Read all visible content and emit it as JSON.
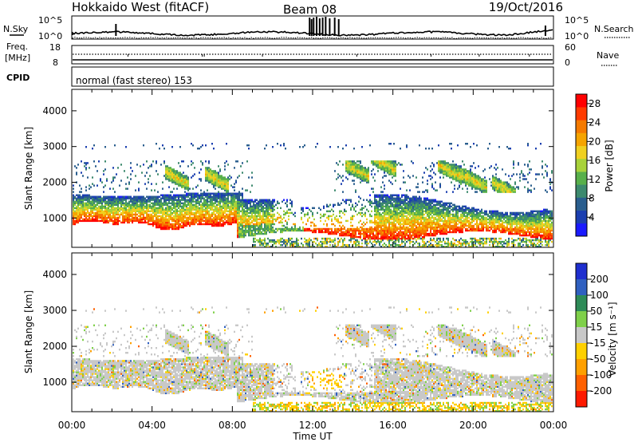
{
  "header": {
    "title": "Hokkaido West (fitACF)",
    "beam": "Beam 08",
    "date": "19/Oct/2016"
  },
  "top_panels": {
    "nsky_label": "N.Sky",
    "nsearch_label": "N.Search",
    "log_top": "10^5",
    "log_bottom": "10^0",
    "freq_label_1": "Freq.",
    "freq_label_2": "[MHz]",
    "freq_max": "18",
    "freq_min": "8",
    "nave_label": "Nave",
    "nave_max": "60",
    "nave_min": "0",
    "cpid_label": "CPID",
    "cpid_text": "normal (fast stereo) 153"
  },
  "chart_data": [
    {
      "type": "heatmap",
      "panel": "power",
      "ylabel": "Slant Range [km]",
      "ylim": [
        180,
        4600
      ],
      "yticks": [
        "1000",
        "2000",
        "3000",
        "4000"
      ],
      "xlabels": [
        "00:00",
        "04:00",
        "08:00",
        "12:00",
        "16:00",
        "20:00",
        "00:00"
      ],
      "xlim_hours": [
        0,
        24
      ],
      "colorbar": {
        "label": "Power [dB]",
        "ticks": [
          "4",
          "8",
          "12",
          "16",
          "20",
          "24",
          "28"
        ],
        "range": [
          0,
          30
        ],
        "colors": [
          "#1a1aff",
          "#1b3fb0",
          "#2a5e8e",
          "#3d8a6e",
          "#58b04a",
          "#a8d23a",
          "#f0d020",
          "#f5a400",
          "#f57a00",
          "#ff3b00",
          "#ff0000"
        ]
      }
    },
    {
      "type": "heatmap",
      "panel": "velocity",
      "ylabel": "Slant Range [km]",
      "ylim": [
        180,
        4600
      ],
      "yticks": [
        "1000",
        "2000",
        "3000",
        "4000"
      ],
      "xlabels": [
        "00:00",
        "04:00",
        "08:00",
        "12:00",
        "16:00",
        "20:00",
        "00:00"
      ],
      "xlabel": "Time UT",
      "xlim_hours": [
        0,
        24
      ],
      "colorbar": {
        "label": "Velocity [m s⁻¹]",
        "ticks": [
          "200",
          "100",
          "50",
          "15",
          "-15",
          "-50",
          "-100",
          "-200"
        ],
        "colors": [
          "#1f2fcf",
          "#3060c0",
          "#2e8b57",
          "#7fd04a",
          "#c8c8c8",
          "#ffd000",
          "#ffa000",
          "#ff6000",
          "#ff1a00"
        ]
      }
    }
  ]
}
